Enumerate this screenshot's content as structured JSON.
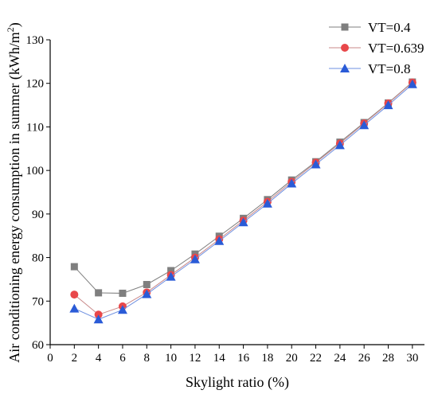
{
  "chart_data": {
    "type": "line",
    "xlabel": "Skylight ratio (%)",
    "ylabel": {
      "prefix": "Air conditioning energy consumption in summer (kWh/m",
      "superscript": "2",
      "suffix": ")"
    },
    "xlim": [
      0,
      31
    ],
    "ylim": [
      60,
      130
    ],
    "xticks": [
      "0",
      "2",
      "4",
      "6",
      "8",
      "10",
      "12",
      "14",
      "16",
      "18",
      "20",
      "22",
      "24",
      "26",
      "28",
      "30"
    ],
    "yticks": [
      "60",
      "70",
      "80",
      "90",
      "100",
      "110",
      "120",
      "130"
    ],
    "x": [
      2,
      4,
      6,
      8,
      10,
      12,
      14,
      16,
      18,
      20,
      22,
      24,
      26,
      28,
      30
    ],
    "legend_position": "top-right",
    "grid": false,
    "series": [
      {
        "name": "VT=0.4",
        "marker": "square",
        "color": "#7f7f7f",
        "line_color": "#7f7f7f",
        "values": [
          77.9,
          71.9,
          71.8,
          73.8,
          77.0,
          80.8,
          84.9,
          89.0,
          93.3,
          97.8,
          102.0,
          106.5,
          111.0,
          115.5,
          120.3
        ]
      },
      {
        "name": "VT=0.639",
        "marker": "circle",
        "color": "#e8474a",
        "line_color": "#c98a8a",
        "values": [
          71.5,
          66.9,
          68.8,
          72.0,
          76.0,
          80.0,
          84.2,
          88.5,
          92.8,
          97.4,
          101.8,
          106.2,
          110.8,
          115.4,
          120.2
        ]
      },
      {
        "name": "VT=0.8",
        "marker": "triangle",
        "color": "#2a5bd7",
        "line_color": "#6d8fe0",
        "values": [
          68.3,
          65.8,
          68.0,
          71.6,
          75.6,
          79.6,
          83.8,
          88.1,
          92.4,
          97.0,
          101.4,
          105.8,
          110.4,
          115.0,
          119.8
        ]
      }
    ]
  }
}
